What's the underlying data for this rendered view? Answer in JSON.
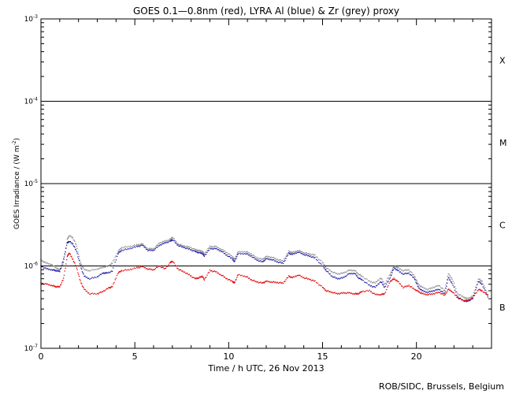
{
  "chart_data": {
    "type": "scatter",
    "title": "GOES 0.1—0.8nm (red), LYRA Al (blue) & Zr (grey) proxy",
    "xlabel": "Time / h UTC, 26 Nov 2013",
    "ylabel_main": "GOES Irradiance / (W m",
    "ylabel_sup": "-2",
    "ylabel_close": ")",
    "credit": "ROB/SIDC, Brussels, Belgium",
    "xlim": [
      0,
      24
    ],
    "ylim_log10": [
      -7,
      -3
    ],
    "x_ticks": [
      0,
      5,
      10,
      15,
      20
    ],
    "x_tick_labels": [
      "0",
      "5",
      "10",
      "15",
      "20"
    ],
    "y_ticks": [
      {
        "exp": -7,
        "base": "10",
        "sup": "-7"
      },
      {
        "exp": -6,
        "base": "10",
        "sup": "-6"
      },
      {
        "exp": -5,
        "base": "10",
        "sup": "-5"
      },
      {
        "exp": -4,
        "base": "10",
        "sup": "-4"
      },
      {
        "exp": -3,
        "base": "10",
        "sup": "-3"
      }
    ],
    "flare_classes": [
      {
        "label": "B",
        "log10_center": -6.5
      },
      {
        "label": "C",
        "log10_center": -5.5
      },
      {
        "label": "M",
        "log10_center": -4.5
      },
      {
        "label": "X",
        "log10_center": -3.5
      }
    ],
    "reference_lines_log10": [
      -6,
      -5,
      -4
    ],
    "series": [
      {
        "name": "Zr",
        "color": "#8c8c8c",
        "points": [
          [
            0.0,
            1.18e-06
          ],
          [
            0.2,
            1.1e-06
          ],
          [
            0.5,
            1.06e-06
          ],
          [
            0.8,
            9.5e-07
          ],
          [
            1.0,
            9e-07
          ],
          [
            1.2,
            1.08e-06
          ],
          [
            1.4,
            2.1e-06
          ],
          [
            1.5,
            2.35e-06
          ],
          [
            1.7,
            2.2e-06
          ],
          [
            1.9,
            1.75e-06
          ],
          [
            2.1,
            1.1e-06
          ],
          [
            2.3,
            9e-07
          ],
          [
            2.6,
            8.8e-07
          ],
          [
            3.0,
            9.2e-07
          ],
          [
            3.3,
            9.6e-07
          ],
          [
            3.6,
            1e-06
          ],
          [
            3.8,
            1.08e-06
          ],
          [
            4.1,
            1.5e-06
          ],
          [
            4.3,
            1.68e-06
          ],
          [
            4.7,
            1.72e-06
          ],
          [
            5.1,
            1.8e-06
          ],
          [
            5.4,
            1.85e-06
          ],
          [
            5.7,
            1.62e-06
          ],
          [
            6.0,
            1.62e-06
          ],
          [
            6.3,
            1.9e-06
          ],
          [
            6.6,
            2e-06
          ],
          [
            6.9,
            2.1e-06
          ],
          [
            7.0,
            2.25e-06
          ],
          [
            7.3,
            1.85e-06
          ],
          [
            7.6,
            1.75e-06
          ],
          [
            7.9,
            1.7e-06
          ],
          [
            8.2,
            1.58e-06
          ],
          [
            8.4,
            1.55e-06
          ],
          [
            8.6,
            1.5e-06
          ],
          [
            8.7,
            1.4e-06
          ],
          [
            9.0,
            1.72e-06
          ],
          [
            9.3,
            1.72e-06
          ],
          [
            9.6,
            1.6e-06
          ],
          [
            9.9,
            1.45e-06
          ],
          [
            10.2,
            1.3e-06
          ],
          [
            10.3,
            1.2e-06
          ],
          [
            10.5,
            1.48e-06
          ],
          [
            10.9,
            1.5e-06
          ],
          [
            11.2,
            1.4e-06
          ],
          [
            11.5,
            1.25e-06
          ],
          [
            11.8,
            1.2e-06
          ],
          [
            12.0,
            1.3e-06
          ],
          [
            12.3,
            1.28e-06
          ],
          [
            12.6,
            1.2e-06
          ],
          [
            12.9,
            1.15e-06
          ],
          [
            13.2,
            1.5e-06
          ],
          [
            13.4,
            1.45e-06
          ],
          [
            13.7,
            1.55e-06
          ],
          [
            14.0,
            1.45e-06
          ],
          [
            14.3,
            1.4e-06
          ],
          [
            14.6,
            1.35e-06
          ],
          [
            15.0,
            1.1e-06
          ],
          [
            15.2,
            9.5e-07
          ],
          [
            15.5,
            8.5e-07
          ],
          [
            15.8,
            8e-07
          ],
          [
            16.1,
            8.2e-07
          ],
          [
            16.4,
            8.8e-07
          ],
          [
            16.7,
            8.9e-07
          ],
          [
            16.9,
            8e-07
          ],
          [
            17.1,
            7.5e-07
          ],
          [
            17.5,
            6.5e-07
          ],
          [
            17.8,
            6.2e-07
          ],
          [
            18.1,
            7.2e-07
          ],
          [
            18.3,
            6e-07
          ],
          [
            18.6,
            8e-07
          ],
          [
            18.8,
            1e-06
          ],
          [
            19.0,
            9.5e-07
          ],
          [
            19.3,
            8.8e-07
          ],
          [
            19.6,
            9e-07
          ],
          [
            19.9,
            7.5e-07
          ],
          [
            20.1,
            6e-07
          ],
          [
            20.3,
            5.5e-07
          ],
          [
            20.6,
            5.2e-07
          ],
          [
            20.9,
            5.5e-07
          ],
          [
            21.2,
            5.8e-07
          ],
          [
            21.5,
            5e-07
          ],
          [
            21.7,
            8e-07
          ],
          [
            21.9,
            7e-07
          ],
          [
            22.2,
            4.6e-07
          ],
          [
            22.5,
            4.2e-07
          ],
          [
            22.7,
            4e-07
          ],
          [
            23.0,
            4.3e-07
          ],
          [
            23.3,
            7e-07
          ],
          [
            23.5,
            6.5e-07
          ],
          [
            23.8,
            4.5e-07
          ]
        ]
      },
      {
        "name": "Al",
        "color": "#1a1aa8",
        "points": [
          [
            0.0,
            1e-06
          ],
          [
            0.3,
            9.2e-07
          ],
          [
            0.6,
            9e-07
          ],
          [
            0.8,
            8.8e-07
          ],
          [
            1.0,
            8.6e-07
          ],
          [
            1.2,
            1.2e-06
          ],
          [
            1.4,
            1.9e-06
          ],
          [
            1.5,
            2e-06
          ],
          [
            1.7,
            1.85e-06
          ],
          [
            1.9,
            1.5e-06
          ],
          [
            2.1,
            1e-06
          ],
          [
            2.3,
            7.5e-07
          ],
          [
            2.6,
            7e-07
          ],
          [
            3.0,
            7.4e-07
          ],
          [
            3.3,
            8.2e-07
          ],
          [
            3.5,
            8.2e-07
          ],
          [
            3.8,
            8.6e-07
          ],
          [
            4.1,
            1.42e-06
          ],
          [
            4.3,
            1.55e-06
          ],
          [
            4.7,
            1.62e-06
          ],
          [
            5.1,
            1.72e-06
          ],
          [
            5.4,
            1.78e-06
          ],
          [
            5.7,
            1.55e-06
          ],
          [
            6.0,
            1.55e-06
          ],
          [
            6.3,
            1.78e-06
          ],
          [
            6.6,
            1.9e-06
          ],
          [
            6.9,
            2e-06
          ],
          [
            7.0,
            2.1e-06
          ],
          [
            7.3,
            1.78e-06
          ],
          [
            7.6,
            1.68e-06
          ],
          [
            7.9,
            1.6e-06
          ],
          [
            8.2,
            1.5e-06
          ],
          [
            8.4,
            1.46e-06
          ],
          [
            8.6,
            1.42e-06
          ],
          [
            8.7,
            1.32e-06
          ],
          [
            9.0,
            1.62e-06
          ],
          [
            9.3,
            1.62e-06
          ],
          [
            9.6,
            1.52e-06
          ],
          [
            9.9,
            1.35e-06
          ],
          [
            10.2,
            1.22e-06
          ],
          [
            10.3,
            1.12e-06
          ],
          [
            10.5,
            1.4e-06
          ],
          [
            10.9,
            1.42e-06
          ],
          [
            11.2,
            1.32e-06
          ],
          [
            11.5,
            1.18e-06
          ],
          [
            11.8,
            1.12e-06
          ],
          [
            12.0,
            1.22e-06
          ],
          [
            12.3,
            1.2e-06
          ],
          [
            12.6,
            1.12e-06
          ],
          [
            12.9,
            1.08e-06
          ],
          [
            13.2,
            1.42e-06
          ],
          [
            13.4,
            1.38e-06
          ],
          [
            13.7,
            1.48e-06
          ],
          [
            14.0,
            1.38e-06
          ],
          [
            14.3,
            1.32e-06
          ],
          [
            14.6,
            1.25e-06
          ],
          [
            15.0,
            1e-06
          ],
          [
            15.2,
            8.8e-07
          ],
          [
            15.5,
            7.5e-07
          ],
          [
            15.8,
            7e-07
          ],
          [
            16.1,
            7.2e-07
          ],
          [
            16.4,
            8e-07
          ],
          [
            16.7,
            8.2e-07
          ],
          [
            16.9,
            7.2e-07
          ],
          [
            17.1,
            6.8e-07
          ],
          [
            17.5,
            5.8e-07
          ],
          [
            17.8,
            5.5e-07
          ],
          [
            18.1,
            6.5e-07
          ],
          [
            18.3,
            5.5e-07
          ],
          [
            18.6,
            7.2e-07
          ],
          [
            18.8,
            9.5e-07
          ],
          [
            19.0,
            8.8e-07
          ],
          [
            19.3,
            8e-07
          ],
          [
            19.6,
            8.2e-07
          ],
          [
            19.9,
            7e-07
          ],
          [
            20.1,
            5.5e-07
          ],
          [
            20.3,
            5e-07
          ],
          [
            20.6,
            4.8e-07
          ],
          [
            20.9,
            5e-07
          ],
          [
            21.2,
            5.2e-07
          ],
          [
            21.5,
            4.6e-07
          ],
          [
            21.7,
            7.2e-07
          ],
          [
            21.9,
            6.2e-07
          ],
          [
            22.2,
            4.2e-07
          ],
          [
            22.5,
            3.8e-07
          ],
          [
            22.7,
            3.7e-07
          ],
          [
            23.0,
            4e-07
          ],
          [
            23.3,
            6.5e-07
          ],
          [
            23.5,
            6e-07
          ],
          [
            23.8,
            4.2e-07
          ]
        ]
      },
      {
        "name": "GOES 0.1—0.8nm",
        "color": "#e00000",
        "points": [
          [
            0.0,
            6.2e-07
          ],
          [
            0.3,
            6e-07
          ],
          [
            0.6,
            5.8e-07
          ],
          [
            0.8,
            5.6e-07
          ],
          [
            1.0,
            5.6e-07
          ],
          [
            1.2,
            7e-07
          ],
          [
            1.4,
            1.3e-06
          ],
          [
            1.5,
            1.45e-06
          ],
          [
            1.7,
            1.2e-06
          ],
          [
            1.9,
            9.5e-07
          ],
          [
            2.1,
            6.5e-07
          ],
          [
            2.3,
            5.2e-07
          ],
          [
            2.6,
            4.6e-07
          ],
          [
            3.0,
            4.6e-07
          ],
          [
            3.3,
            4.9e-07
          ],
          [
            3.6,
            5.4e-07
          ],
          [
            3.8,
            5.6e-07
          ],
          [
            4.1,
            8.2e-07
          ],
          [
            4.3,
            8.8e-07
          ],
          [
            4.7,
            9e-07
          ],
          [
            5.1,
            9.5e-07
          ],
          [
            5.4,
            9.8e-07
          ],
          [
            5.7,
            9.2e-07
          ],
          [
            6.0,
            9e-07
          ],
          [
            6.3,
            1e-06
          ],
          [
            6.6,
            9.2e-07
          ],
          [
            6.9,
            1.1e-06
          ],
          [
            7.0,
            1.15e-06
          ],
          [
            7.3,
            9.2e-07
          ],
          [
            7.6,
            8.5e-07
          ],
          [
            7.9,
            7.8e-07
          ],
          [
            8.2,
            7e-07
          ],
          [
            8.4,
            7.2e-07
          ],
          [
            8.6,
            7.5e-07
          ],
          [
            8.7,
            6.8e-07
          ],
          [
            9.0,
            8.8e-07
          ],
          [
            9.3,
            8.5e-07
          ],
          [
            9.6,
            7.8e-07
          ],
          [
            9.9,
            7e-07
          ],
          [
            10.2,
            6.5e-07
          ],
          [
            10.3,
            6.2e-07
          ],
          [
            10.5,
            7.8e-07
          ],
          [
            10.9,
            7.5e-07
          ],
          [
            11.2,
            6.8e-07
          ],
          [
            11.5,
            6.4e-07
          ],
          [
            11.8,
            6.2e-07
          ],
          [
            12.0,
            6.5e-07
          ],
          [
            12.3,
            6.4e-07
          ],
          [
            12.6,
            6.3e-07
          ],
          [
            12.9,
            6.2e-07
          ],
          [
            13.2,
            7.5e-07
          ],
          [
            13.4,
            7.2e-07
          ],
          [
            13.7,
            7.8e-07
          ],
          [
            14.0,
            7.2e-07
          ],
          [
            14.3,
            6.9e-07
          ],
          [
            14.6,
            6.5e-07
          ],
          [
            15.0,
            5.5e-07
          ],
          [
            15.2,
            5e-07
          ],
          [
            15.5,
            4.8e-07
          ],
          [
            15.8,
            4.6e-07
          ],
          [
            16.1,
            4.7e-07
          ],
          [
            16.4,
            4.7e-07
          ],
          [
            16.7,
            4.6e-07
          ],
          [
            16.9,
            4.6e-07
          ],
          [
            17.1,
            4.9e-07
          ],
          [
            17.5,
            5e-07
          ],
          [
            17.8,
            4.5e-07
          ],
          [
            18.1,
            4.5e-07
          ],
          [
            18.3,
            4.6e-07
          ],
          [
            18.6,
            6.5e-07
          ],
          [
            18.8,
            7e-07
          ],
          [
            19.0,
            6.5e-07
          ],
          [
            19.3,
            5.5e-07
          ],
          [
            19.6,
            5.8e-07
          ],
          [
            19.9,
            5.2e-07
          ],
          [
            20.1,
            4.9e-07
          ],
          [
            20.3,
            4.6e-07
          ],
          [
            20.6,
            4.5e-07
          ],
          [
            20.9,
            4.6e-07
          ],
          [
            21.2,
            4.8e-07
          ],
          [
            21.5,
            4.4e-07
          ],
          [
            21.7,
            5.2e-07
          ],
          [
            21.9,
            4.9e-07
          ],
          [
            22.2,
            4.1e-07
          ],
          [
            22.5,
            3.8e-07
          ],
          [
            22.7,
            3.8e-07
          ],
          [
            23.0,
            4.1e-07
          ],
          [
            23.3,
            5.2e-07
          ],
          [
            23.5,
            5e-07
          ],
          [
            23.8,
            4.4e-07
          ]
        ]
      }
    ]
  }
}
